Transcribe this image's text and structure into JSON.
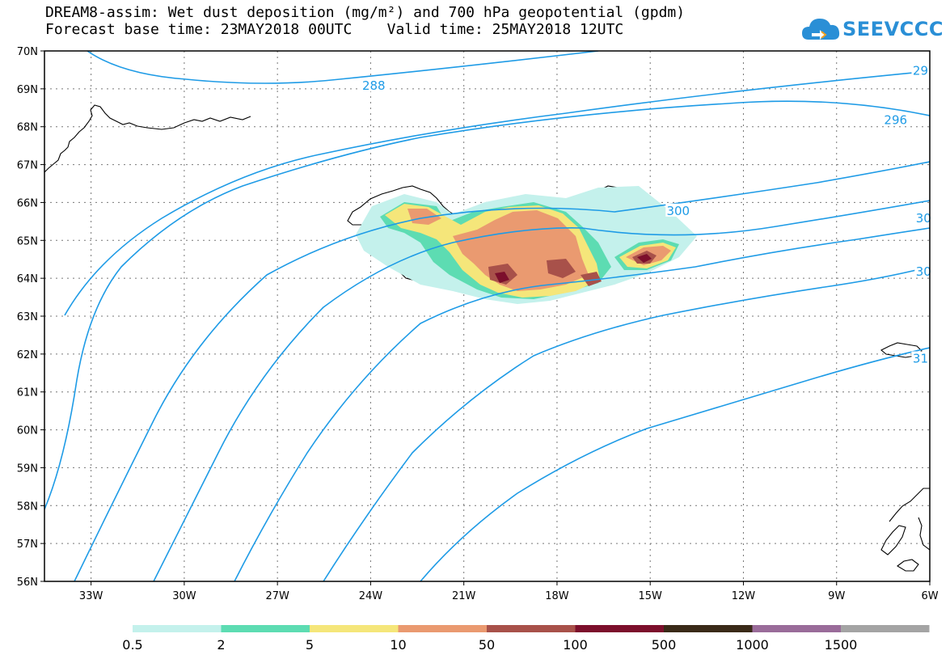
{
  "title": {
    "line1": "DREAM8-assim: Wet dust deposition (mg/m²) and 700 hPa geopotential (gpdm)",
    "line2": "Forecast base time: 23MAY2018 00UTC    Valid time: 25MAY2018 12UTC"
  },
  "logo": {
    "text": "SEEVCCC"
  },
  "map": {
    "lon_range": [
      -34.5,
      -6
    ],
    "lat_range": [
      56,
      70
    ],
    "lon_ticks": [
      {
        "value": -33,
        "label": "33W"
      },
      {
        "value": -30,
        "label": "30W"
      },
      {
        "value": -27,
        "label": "27W"
      },
      {
        "value": -24,
        "label": "24W"
      },
      {
        "value": -21,
        "label": "21W"
      },
      {
        "value": -18,
        "label": "18W"
      },
      {
        "value": -15,
        "label": "15W"
      },
      {
        "value": -12,
        "label": "12W"
      },
      {
        "value": -9,
        "label": "9W"
      },
      {
        "value": -6,
        "label": "6W"
      }
    ],
    "lat_ticks": [
      {
        "value": 56,
        "label": "56N"
      },
      {
        "value": 57,
        "label": "57N"
      },
      {
        "value": 58,
        "label": "58N"
      },
      {
        "value": 59,
        "label": "59N"
      },
      {
        "value": 60,
        "label": "60N"
      },
      {
        "value": 61,
        "label": "61N"
      },
      {
        "value": 62,
        "label": "62N"
      },
      {
        "value": 63,
        "label": "63N"
      },
      {
        "value": 64,
        "label": "64N"
      },
      {
        "value": 65,
        "label": "65N"
      },
      {
        "value": 66,
        "label": "66N"
      },
      {
        "value": 67,
        "label": "67N"
      },
      {
        "value": 68,
        "label": "68N"
      },
      {
        "value": 69,
        "label": "69N"
      },
      {
        "value": 70,
        "label": "70N"
      }
    ],
    "contour_color": "#1e9be6",
    "contour_labels": [
      {
        "text": "288",
        "lon": -23.9,
        "lat": 69.1
      },
      {
        "text": "29",
        "lon": -6.3,
        "lat": 69.5
      },
      {
        "text": "296",
        "lon": -7.1,
        "lat": 68.2
      },
      {
        "text": "300",
        "lon": -14.1,
        "lat": 65.8
      },
      {
        "text": "30",
        "lon": -6.2,
        "lat": 65.6
      },
      {
        "text": "30",
        "lon": -6.2,
        "lat": 64.2
      },
      {
        "text": "31",
        "lon": -6.3,
        "lat": 61.9
      }
    ]
  },
  "legend": {
    "colors": [
      "#c4f1ec",
      "#5ddcb2",
      "#f5e67a",
      "#ea9a70",
      "#a8514a",
      "#7c0f2c",
      "#3a2a18",
      "#9a6c9a",
      "#a4a4a4"
    ],
    "labels": [
      "0.5",
      "2",
      "5",
      "10",
      "50",
      "100",
      "500",
      "1000",
      "1500"
    ]
  }
}
